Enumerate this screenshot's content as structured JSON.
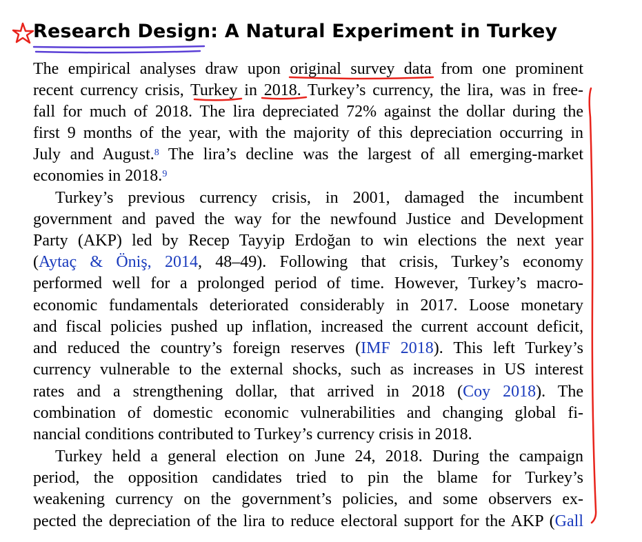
{
  "heading": {
    "title_a": "Research Design",
    "title_b": ": A Natural Experiment in Turkey"
  },
  "lines": [
    {
      "a": "The empirical analyses draw upon original survey data from one prominent"
    },
    {
      "a": "recent currency crisis, Turkey in 2018. Turkey’s currency, the lira, was in free-"
    },
    {
      "a": "fall for much of 2018. The lira depreciated 72% against the dollar during the"
    },
    {
      "a": "first 9 months of the year, with the majority of this depreciation occurring in"
    },
    {
      "a": "July and August.",
      "fn": "8",
      "b": " The lira’s decline was the largest of all emerging-market"
    },
    {
      "a": "economies in 2018.",
      "fn": "9"
    },
    {
      "a": "Turkey’s previous currency crisis, in 2001, damaged the incumbent"
    },
    {
      "a": "government and paved the way for the newfound Justice and Development"
    },
    {
      "a": "Party (AKP) led by Recep Tayyip Erdoğan to win elections the next year"
    },
    {
      "a": "(",
      "cite": "Aytaç & Öniş, 2014",
      "b": ", 48–49). Following that crisis, Turkey’s economy"
    },
    {
      "a": "performed well for a prolonged period of time. However, Turkey’s macro-"
    },
    {
      "a": "economic fundamentals deteriorated considerably in 2017. Loose monetary"
    },
    {
      "a": "and fiscal policies pushed up inflation, increased the current account deficit,"
    },
    {
      "a": "and reduced the country’s foreign reserves (",
      "cite": "IMF 2018",
      "b": "). This left Turkey’s"
    },
    {
      "a": "currency vulnerable to the external shocks, such as increases in US interest"
    },
    {
      "a": "rates and a strengthening dollar, that arrived in 2018 (",
      "cite": "Coy 2018",
      "b": "). The"
    },
    {
      "a": "combination of domestic economic vulnerabilities and changing global fi-"
    },
    {
      "a": "nancial conditions contributed to Turkey’s currency crisis in 2018."
    },
    {
      "a": "Turkey held a general election on June 24, 2018. During the campaign"
    },
    {
      "a": "period, the opposition candidates tried to pin the blame for Turkey’s"
    },
    {
      "a": "weakening currency on the government’s policies, and some observers ex-"
    },
    {
      "a": "pected the depreciation of the lira to reduce electoral support for the AKP (",
      "cite": "Gall"
    }
  ],
  "annotation_colors": {
    "red": "#e8231b",
    "purple": "#5a3fd6",
    "citation": "#1a3bbd"
  }
}
